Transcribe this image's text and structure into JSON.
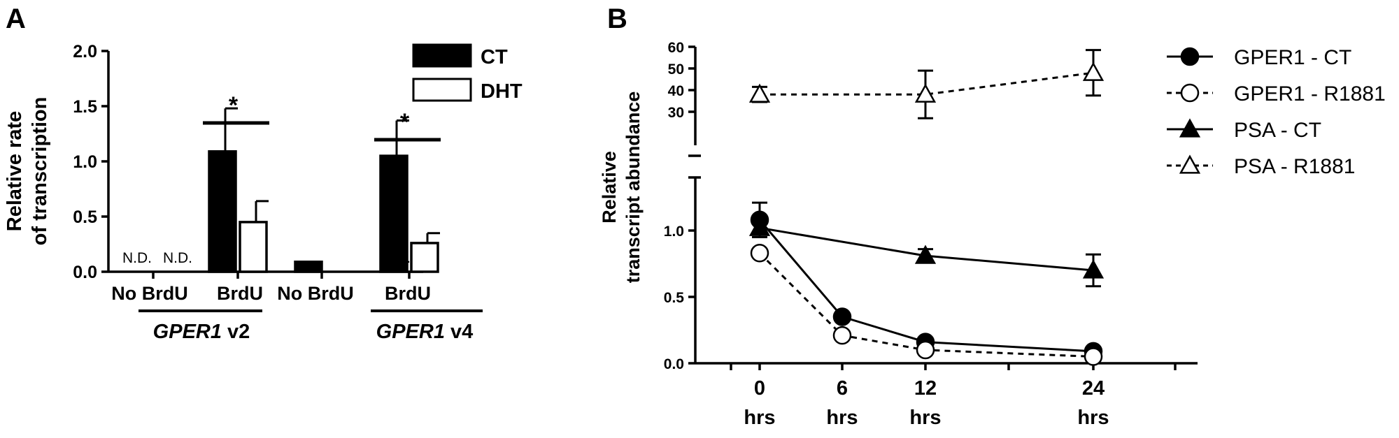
{
  "panels": {
    "a": "A",
    "b": "B"
  },
  "chart_data": [
    {
      "type": "bar",
      "panel": "A",
      "ylabel_line1": "Relative rate",
      "ylabel_line2": "of transcription",
      "ylim": [
        0,
        2.0
      ],
      "yticks": [
        "0.0",
        "0.5",
        "1.0",
        "1.5",
        "2.0"
      ],
      "categories": [
        "No BrdU",
        "BrdU",
        "No BrdU",
        "BrdU"
      ],
      "groups": [
        {
          "name_italic": "GPER1",
          "name_rest": " v2"
        },
        {
          "name_italic": "GPER1",
          "name_rest": " v4"
        }
      ],
      "series": [
        {
          "name": "CT",
          "color": "#000000",
          "values": [
            null,
            1.09,
            0.09,
            1.05
          ],
          "errors": [
            null,
            0.39,
            null,
            0.32
          ]
        },
        {
          "name": "DHT",
          "color": "#ffffff",
          "values": [
            null,
            0.45,
            null,
            0.26
          ],
          "errors": [
            null,
            0.19,
            null,
            0.09
          ]
        }
      ],
      "nd_label": "N.D.",
      "significance": [
        {
          "category": 1,
          "label": "*"
        },
        {
          "category": 3,
          "label": "*"
        }
      ]
    },
    {
      "type": "line",
      "panel": "B",
      "ylabel_line1": "Relative",
      "ylabel_line2": "transcript abundance",
      "broken_y_axis": true,
      "ylim_lower": [
        0,
        1.3
      ],
      "ylim_upper": [
        26,
        60
      ],
      "yticks_lower": [
        "0.0",
        "0.5",
        "1.0"
      ],
      "yticks_upper": [
        "30",
        "40",
        "50",
        "60"
      ],
      "x": [
        0,
        6,
        12,
        24
      ],
      "xticks": [
        "0",
        "6",
        "12",
        "24"
      ],
      "xunit": "hrs",
      "legend_position": "right",
      "series": [
        {
          "name": "GPER1 - CT",
          "marker": "circle",
          "filled": true,
          "dash": false,
          "values": [
            1.08,
            0.35,
            0.16,
            0.09
          ],
          "errors": [
            0.13,
            0.02,
            0.02,
            0.02
          ]
        },
        {
          "name": "GPER1 -  R1881",
          "marker": "circle",
          "filled": false,
          "dash": true,
          "values": [
            0.83,
            0.21,
            0.1,
            0.05
          ],
          "errors": [
            0.02,
            0.02,
            0.01,
            0.01
          ]
        },
        {
          "name": "PSA - CT",
          "marker": "triangle",
          "filled": true,
          "dash": false,
          "values": [
            1.02,
            0.81,
            null,
            0.7
          ],
          "x": [
            0,
            12,
            null,
            24
          ],
          "errors": [
            0.05,
            0.05,
            null,
            0.12
          ]
        },
        {
          "name": "PSA - R1881",
          "marker": "triangle",
          "filled": false,
          "dash": true,
          "values": [
            38,
            38,
            48
          ],
          "x": [
            0,
            12,
            24
          ],
          "errors": [
            3.5,
            11,
            10.5
          ]
        }
      ]
    }
  ]
}
